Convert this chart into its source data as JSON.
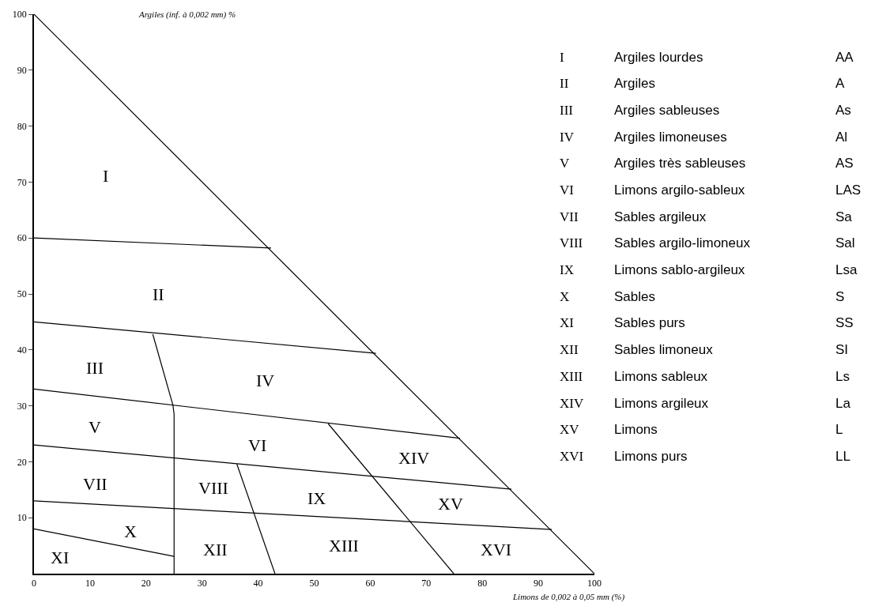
{
  "chart_data": {
    "type": "line",
    "xlabel": "Limons de 0,002 à 0,05 mm (%)",
    "ylabel": "Argiles (inf. à 0,002 mm) %",
    "xlim": [
      0,
      100
    ],
    "ylim": [
      0,
      100
    ],
    "xticks": [
      0,
      10,
      20,
      30,
      40,
      50,
      60,
      70,
      80,
      90,
      100
    ],
    "yticks": [
      10,
      20,
      30,
      40,
      50,
      60,
      70,
      80,
      90,
      100
    ],
    "marker": "none",
    "line_style": "solid",
    "series": [
      {
        "color": "#000000",
        "x": [
          0,
          100
        ],
        "values": [
          100,
          0
        ]
      },
      {
        "color": "#000000",
        "x": [
          0,
          42.3
        ],
        "values": [
          60,
          58.2
        ]
      },
      {
        "color": "#000000",
        "x": [
          0,
          61
        ],
        "values": [
          45,
          39.4
        ]
      },
      {
        "color": "#000000",
        "x": [
          21.2,
          24.8,
          25,
          25
        ],
        "values": [
          42.8,
          30.1,
          28.5,
          0
        ]
      },
      {
        "color": "#000000",
        "x": [
          0,
          76
        ],
        "values": [
          33,
          24.2
        ]
      },
      {
        "color": "#000000",
        "x": [
          0,
          85.2
        ],
        "values": [
          23,
          15.1
        ]
      },
      {
        "color": "#000000",
        "x": [
          0,
          92.4
        ],
        "values": [
          13,
          7.9
        ]
      },
      {
        "color": "#000000",
        "x": [
          0,
          25
        ],
        "values": [
          8,
          3.1
        ]
      },
      {
        "color": "#000000",
        "x": [
          36.2,
          43
        ],
        "values": [
          19.6,
          0
        ]
      },
      {
        "color": "#000000",
        "x": [
          52.5,
          74.9
        ],
        "values": [
          26.8,
          0
        ]
      }
    ],
    "annotations": [
      "I",
      "II",
      "III",
      "IV",
      "V",
      "VI",
      "VII",
      "VIII",
      "IX",
      "X",
      "XI",
      "XII",
      "XIII",
      "XIV",
      "XV",
      "XVI",
      "I",
      "Argiles lourdes",
      "AA",
      "II",
      "Argiles",
      "A",
      "III",
      "Argiles sableuses",
      "As",
      "IV",
      "Argiles limoneuses",
      "Al",
      "V",
      "Argiles très sableuses",
      "AS",
      "VI",
      "Limons argilo-sableux",
      "LAS",
      "VII",
      "Sables argileux",
      "Sa",
      "VIII",
      "Sables argilo-limoneux",
      "Sal",
      "IX",
      "Limons sablo-argileux",
      "Lsa",
      "X",
      "Sables",
      "S",
      "XI",
      "Sables purs",
      "SS",
      "XII",
      "Sables limoneux",
      "SI",
      "XIII",
      "Limons sableux",
      "Ls",
      "XIV",
      "Limons argileux",
      "La",
      "XV",
      "Limons",
      "L",
      "XVI",
      "Limons purs",
      "LL"
    ]
  }
}
